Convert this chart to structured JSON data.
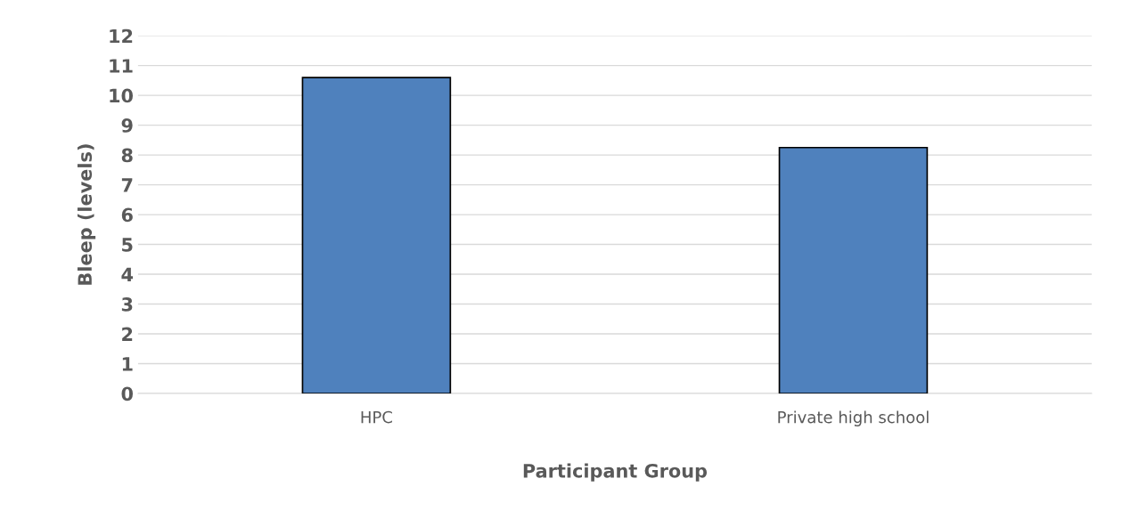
{
  "chart_data": {
    "type": "bar",
    "categories": [
      "HPC",
      "Private high school"
    ],
    "values": [
      10.6,
      8.25
    ],
    "color": "#4f81bd",
    "xlabel": "Participant Group",
    "ylabel": "Bleep (levels)",
    "ylim": [
      0,
      12
    ],
    "yticks": [
      0,
      1,
      2,
      3,
      4,
      5,
      6,
      7,
      8,
      9,
      10,
      11,
      12
    ],
    "grid": "y"
  }
}
